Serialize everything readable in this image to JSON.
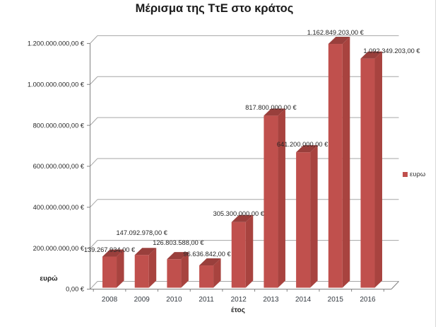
{
  "page": {
    "background": "#ffffff",
    "right_border_color": "#d8d8d8"
  },
  "chart_data": {
    "type": "bar",
    "style": "3d-column",
    "title": "Μέρισμα της ΤτΕ στο κράτος",
    "xlabel": "έτος",
    "ylabel": "ευρώ",
    "legend": {
      "label": "ευρω",
      "color": "#C0504D",
      "position": "right"
    },
    "categories": [
      "2008",
      "2009",
      "2010",
      "2011",
      "2012",
      "2013",
      "2014",
      "2015",
      "2016"
    ],
    "values": [
      139267934,
      147092978,
      126803588,
      96636842,
      305300000,
      817800000,
      641200000,
      1162849203,
      1092349203
    ],
    "value_labels": [
      "139.267.934,00 €",
      "147.092.978,00 €",
      "126.803.588,00 €",
      "96.636.842,00 €",
      "305.300.000,00 €",
      "817.800.000,00 €",
      "641.200.000,00 €",
      "1.162.849.203,00 €",
      "1.092.349.203,00 €"
    ],
    "y_ticks": [
      "0,00 €",
      "200.000.000,00 €",
      "400.000.000,00 €",
      "600.000.000,00 €",
      "800.000.000,00 €",
      "1.000.000.000,00 €",
      "1.200.000.000,00 €"
    ],
    "ylim": [
      0,
      1200000000
    ],
    "y_tick_step": 200000000,
    "grid": true,
    "colors": {
      "bar_front": "#C0504D",
      "bar_top": "#993F3C",
      "bar_side": "#A8433F",
      "gridline": "#A6A6A6",
      "axis": "#808080",
      "text": "#262626",
      "tick_text": "#333940"
    }
  }
}
